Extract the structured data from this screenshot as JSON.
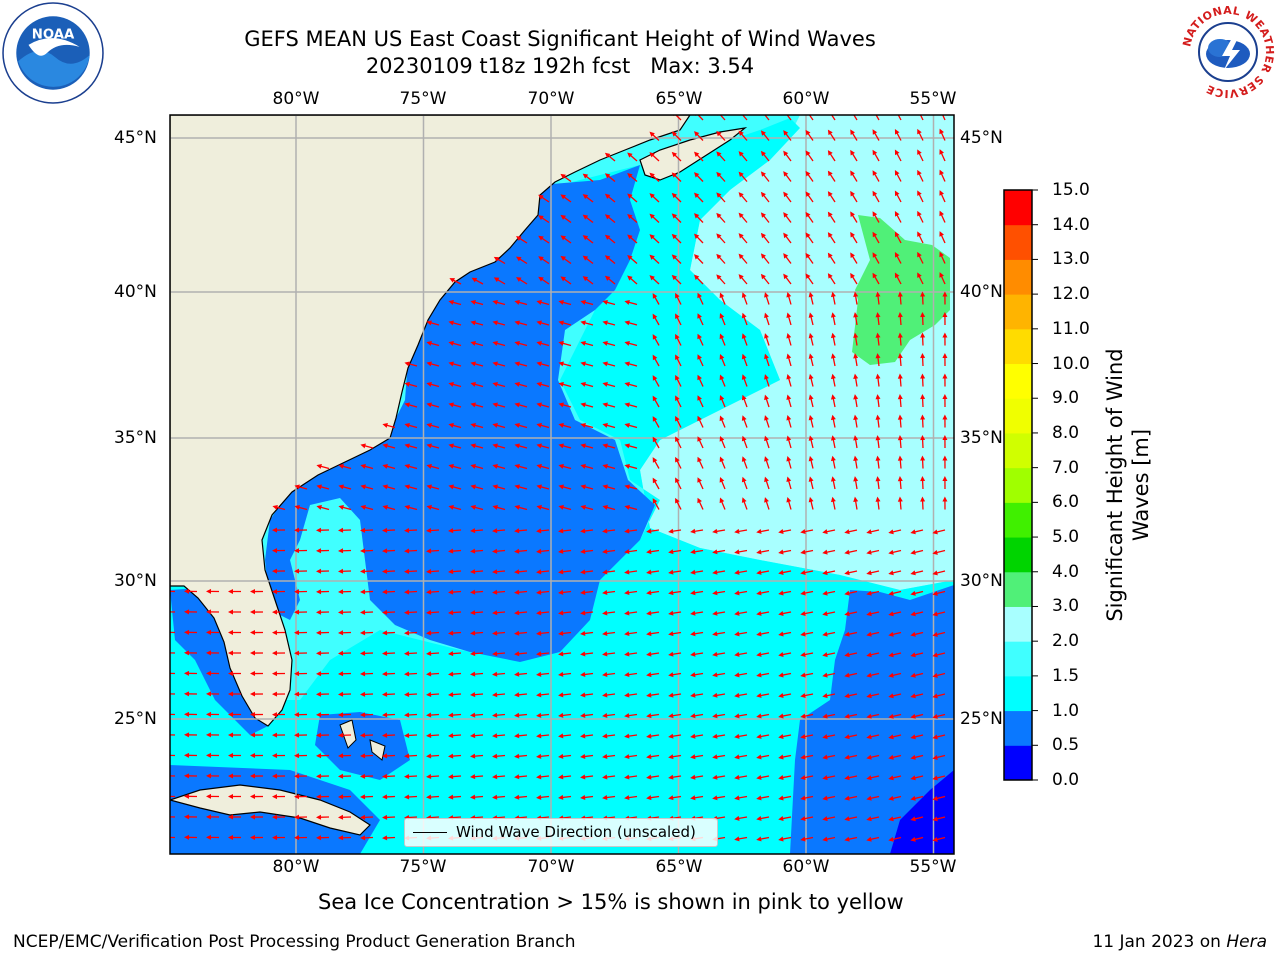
{
  "header": {
    "title_line1": "GEFS MEAN US East Coast Significant Height of Wind Waves",
    "title_line2": "20230109 t18z 192h fcst   Max: 3.54"
  },
  "logos": {
    "left": "noaa-logo",
    "right": "nws-logo",
    "nws_ring_text": "NATIONAL WEATHER SERVICE"
  },
  "map": {
    "extent": {
      "lon_min": -85,
      "lon_max": -54.25,
      "lat_min": 20.5,
      "lat_max": 46
    },
    "lon_labels": [
      "80°W",
      "75°W",
      "70°W",
      "65°W",
      "60°W",
      "55°W"
    ],
    "lat_labels": [
      "45°N",
      "40°N",
      "35°N",
      "30°N",
      "25°N"
    ],
    "land_color": "#efeedc",
    "arrow_color": "#ff0000",
    "gridline_color": "#b0b0b0",
    "legend": "Wind Wave Direction (unscaled)"
  },
  "colorbar": {
    "title": "Significant Height of Wind Waves [m]",
    "ticks": [
      "0.0",
      "0.5",
      "1.0",
      "1.5",
      "2.0",
      "3.0",
      "4.0",
      "5.0",
      "6.0",
      "7.0",
      "8.0",
      "9.0",
      "10.0",
      "11.0",
      "12.0",
      "13.0",
      "14.0",
      "15.0"
    ],
    "colors": [
      "#0000ff",
      "#0a78ff",
      "#00ffff",
      "#40ffff",
      "#a8ffff",
      "#50f078",
      "#00d400",
      "#40f000",
      "#a0ff00",
      "#d0ff00",
      "#f0ff00",
      "#ffff00",
      "#ffdc00",
      "#ffb400",
      "#ff8c00",
      "#ff5000",
      "#ff0000"
    ]
  },
  "footer": {
    "ice_note": "Sea Ice Concentration > 15% is shown in pink to yellow",
    "left": "NCEP/EMC/Verification Post Processing Product Generation Branch",
    "date": "11 Jan 2023 on ",
    "machine": "Hera"
  }
}
